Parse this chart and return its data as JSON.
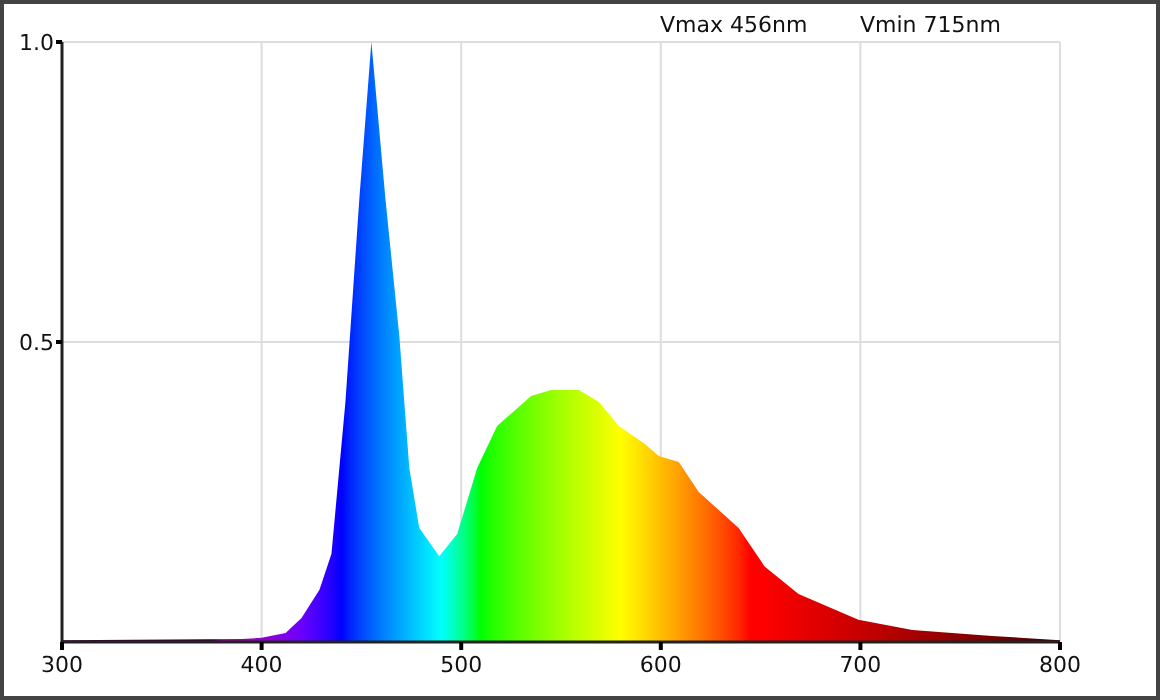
{
  "chart_data": {
    "type": "area",
    "x": [
      300,
      390,
      400,
      412,
      420,
      429,
      435,
      442,
      449,
      455,
      462,
      469,
      474,
      479,
      489,
      498,
      508,
      518,
      535,
      545,
      559,
      569,
      579,
      592,
      599,
      609,
      619,
      639,
      652,
      669,
      699,
      726,
      766,
      800
    ],
    "values": [
      0.003,
      0.005,
      0.007,
      0.015,
      0.04,
      0.087,
      0.147,
      0.4,
      0.74,
      1.0,
      0.74,
      0.51,
      0.29,
      0.19,
      0.143,
      0.18,
      0.29,
      0.36,
      0.41,
      0.42,
      0.42,
      0.4,
      0.36,
      0.33,
      0.31,
      0.3,
      0.25,
      0.19,
      0.126,
      0.08,
      0.037,
      0.02,
      0.01,
      0.003
    ],
    "xlim": [
      300,
      800
    ],
    "xticks": [
      300,
      400,
      500,
      600,
      700,
      800
    ],
    "ylim": [
      0,
      1
    ],
    "yticks": [
      {
        "value": 0.5,
        "label": "0.5"
      },
      {
        "value": 1,
        "label": "1.0"
      }
    ],
    "grid": true,
    "annotations": [
      "Vmax 456nm",
      "Vmin 715nm"
    ]
  }
}
